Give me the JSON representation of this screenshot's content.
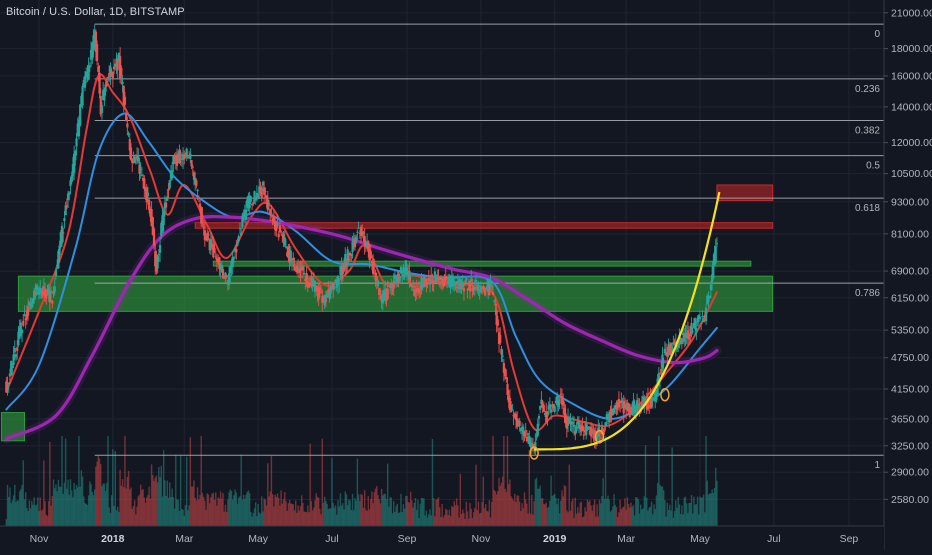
{
  "header": {
    "title": "Bitcoin / U.S. Dollar, 1D, BITSTAMP"
  },
  "colors": {
    "background": "#131722",
    "up_candle": "#26a69a",
    "down_candle": "#ef5350",
    "ema_fast": "#e53935",
    "ema_mid": "#2f8fe0",
    "ma_slow": "#9c27b0",
    "support_zone": "#2e9d3a",
    "resistance_zone": "#c62828",
    "parabola": "#f5e21b",
    "fib_line": "#b2b5be",
    "pivot_marker": "#f5a623"
  },
  "chart_data": {
    "type": "candlestick",
    "title": "Bitcoin / U.S. Dollar, 1D, BITSTAMP",
    "y_scale": "log",
    "ylim": [
      2300,
      22000
    ],
    "xlim": [
      "2017-10-15",
      "2019-09-30"
    ],
    "y_ticks": [
      "21000.00",
      "18000.00",
      "16000.00",
      "14000.00",
      "12000.00",
      "10500.00",
      "9300.00",
      "8100.00",
      "6900.00",
      "6150.00",
      "5350.00",
      "4750.00",
      "4150.00",
      "3650.00",
      "3250.00",
      "2900.00",
      "2580.00"
    ],
    "x_ticks": [
      {
        "label": "Nov",
        "date": "2017-11-01",
        "bold": false
      },
      {
        "label": "2018",
        "date": "2018-01-01",
        "bold": true
      },
      {
        "label": "Mar",
        "date": "2018-03-01",
        "bold": false
      },
      {
        "label": "May",
        "date": "2018-05-01",
        "bold": false
      },
      {
        "label": "Jul",
        "date": "2018-07-01",
        "bold": false
      },
      {
        "label": "Sep",
        "date": "2018-09-01",
        "bold": false
      },
      {
        "label": "Nov",
        "date": "2018-11-01",
        "bold": false
      },
      {
        "label": "2019",
        "date": "2019-01-01",
        "bold": true
      },
      {
        "label": "Mar",
        "date": "2019-03-01",
        "bold": false
      },
      {
        "label": "May",
        "date": "2019-05-01",
        "bold": false
      },
      {
        "label": "Jul",
        "date": "2019-07-01",
        "bold": false
      },
      {
        "label": "Sep",
        "date": "2019-09-01",
        "bold": false
      }
    ],
    "fib_levels": [
      {
        "label": "0",
        "price": 20000
      },
      {
        "label": "0.236",
        "price": 15800
      },
      {
        "label": "0.382",
        "price": 13200
      },
      {
        "label": "0.5",
        "price": 11350
      },
      {
        "label": "0.618",
        "price": 9450
      },
      {
        "label": "0.786",
        "price": 6550
      },
      {
        "label": "1",
        "price": 3120
      }
    ],
    "fib_start_date": "2017-12-17",
    "fib_end_date": "2019-05-15",
    "zones": [
      {
        "type": "support",
        "from_date": "2017-10-15",
        "to_date": "2019-06-30",
        "low": 5800,
        "high": 6750
      },
      {
        "type": "support",
        "from_date": "2018-03-25",
        "to_date": "2019-06-12",
        "low": 7050,
        "high": 7200
      },
      {
        "type": "support",
        "from_date": "2017-10-01",
        "to_date": "2017-10-20",
        "low": 3320,
        "high": 3750
      },
      {
        "type": "resistance",
        "from_date": "2018-03-10",
        "to_date": "2019-06-30",
        "low": 8300,
        "high": 8500
      },
      {
        "type": "resistance",
        "from_date": "2019-05-15",
        "to_date": "2019-06-30",
        "low": 9350,
        "high": 10000
      }
    ],
    "pivots": [
      {
        "date": "2018-12-15",
        "price": 3150
      },
      {
        "date": "2019-02-07",
        "price": 3380
      },
      {
        "date": "2019-04-02",
        "price": 4050
      }
    ],
    "parabola": {
      "start_date": "2018-12-15",
      "start_price": 3200,
      "end_date": "2019-05-17",
      "end_price": 9700
    },
    "close_path": [
      [
        "2017-10-05",
        4200
      ],
      [
        "2017-10-20",
        5700
      ],
      [
        "2017-11-01",
        6400
      ],
      [
        "2017-11-12",
        6200
      ],
      [
        "2017-11-20",
        8200
      ],
      [
        "2017-11-29",
        10600
      ],
      [
        "2017-12-07",
        15000
      ],
      [
        "2017-12-12",
        16400
      ],
      [
        "2017-12-17",
        19300
      ],
      [
        "2017-12-22",
        13900
      ],
      [
        "2017-12-27",
        15700
      ],
      [
        "2018-01-06",
        17100
      ],
      [
        "2018-01-16",
        11200
      ],
      [
        "2018-01-22",
        11000
      ],
      [
        "2018-02-01",
        9000
      ],
      [
        "2018-02-06",
        6900
      ],
      [
        "2018-02-10",
        8300
      ],
      [
        "2018-02-20",
        11200
      ],
      [
        "2018-03-05",
        11400
      ],
      [
        "2018-03-18",
        8100
      ],
      [
        "2018-04-01",
        6900
      ],
      [
        "2018-04-06",
        6600
      ],
      [
        "2018-04-15",
        8100
      ],
      [
        "2018-04-24",
        9400
      ],
      [
        "2018-05-05",
        9800
      ],
      [
        "2018-05-15",
        8500
      ],
      [
        "2018-05-28",
        7300
      ],
      [
        "2018-06-10",
        6700
      ],
      [
        "2018-06-24",
        6100
      ],
      [
        "2018-07-05",
        6600
      ],
      [
        "2018-07-24",
        8300
      ],
      [
        "2018-08-01",
        7500
      ],
      [
        "2018-08-11",
        6100
      ],
      [
        "2018-08-20",
        6500
      ],
      [
        "2018-08-31",
        7000
      ],
      [
        "2018-09-06",
        6400
      ],
      [
        "2018-09-22",
        6700
      ],
      [
        "2018-10-15",
        6500
      ],
      [
        "2018-11-10",
        6400
      ],
      [
        "2018-11-14",
        5600
      ],
      [
        "2018-11-20",
        4500
      ],
      [
        "2018-11-25",
        3800
      ],
      [
        "2018-12-07",
        3400
      ],
      [
        "2018-12-15",
        3200
      ],
      [
        "2018-12-20",
        3900
      ],
      [
        "2018-12-25",
        3700
      ],
      [
        "2019-01-06",
        4000
      ],
      [
        "2019-01-10",
        3600
      ],
      [
        "2019-01-28",
        3450
      ],
      [
        "2019-02-07",
        3400
      ],
      [
        "2019-02-20",
        3900
      ],
      [
        "2019-03-05",
        3800
      ],
      [
        "2019-03-25",
        4000
      ],
      [
        "2019-04-02",
        4900
      ],
      [
        "2019-04-15",
        5100
      ],
      [
        "2019-04-25",
        5400
      ],
      [
        "2019-05-05",
        5700
      ],
      [
        "2019-05-12",
        7000
      ],
      [
        "2019-05-15",
        8000
      ]
    ],
    "moving_averages": [
      {
        "id": "ema-fast",
        "points": [
          [
            "2017-10-05",
            4100
          ],
          [
            "2017-11-01",
            5800
          ],
          [
            "2017-11-25",
            8100
          ],
          [
            "2017-12-10",
            12600
          ],
          [
            "2017-12-20",
            16000
          ],
          [
            "2018-01-01",
            14900
          ],
          [
            "2018-01-15",
            13400
          ],
          [
            "2018-02-01",
            10600
          ],
          [
            "2018-02-15",
            8800
          ],
          [
            "2018-03-01",
            10000
          ],
          [
            "2018-03-20",
            8400
          ],
          [
            "2018-04-05",
            7300
          ],
          [
            "2018-04-25",
            8700
          ],
          [
            "2018-05-10",
            9200
          ],
          [
            "2018-06-01",
            7600
          ],
          [
            "2018-06-25",
            6500
          ],
          [
            "2018-07-15",
            6900
          ],
          [
            "2018-07-28",
            7700
          ],
          [
            "2018-08-15",
            6500
          ],
          [
            "2018-09-01",
            6800
          ],
          [
            "2018-10-01",
            6550
          ],
          [
            "2018-11-01",
            6450
          ],
          [
            "2018-11-15",
            6000
          ],
          [
            "2018-11-28",
            4500
          ],
          [
            "2018-12-15",
            3500
          ],
          [
            "2019-01-01",
            3700
          ],
          [
            "2019-01-25",
            3600
          ],
          [
            "2019-02-15",
            3550
          ],
          [
            "2019-03-10",
            3850
          ],
          [
            "2019-04-05",
            4500
          ],
          [
            "2019-04-25",
            5150
          ],
          [
            "2019-05-15",
            6300
          ]
        ]
      },
      {
        "id": "ema-mid",
        "points": [
          [
            "2017-10-05",
            3800
          ],
          [
            "2017-11-01",
            4600
          ],
          [
            "2017-12-01",
            7600
          ],
          [
            "2017-12-20",
            11500
          ],
          [
            "2018-01-10",
            13600
          ],
          [
            "2018-01-30",
            12100
          ],
          [
            "2018-02-20",
            10400
          ],
          [
            "2018-03-15",
            9400
          ],
          [
            "2018-04-10",
            8700
          ],
          [
            "2018-05-05",
            8900
          ],
          [
            "2018-06-01",
            8200
          ],
          [
            "2018-07-01",
            7200
          ],
          [
            "2018-08-01",
            7100
          ],
          [
            "2018-09-01",
            6850
          ],
          [
            "2018-10-01",
            6700
          ],
          [
            "2018-11-10",
            6600
          ],
          [
            "2018-11-30",
            5200
          ],
          [
            "2018-12-20",
            4300
          ],
          [
            "2019-01-20",
            3850
          ],
          [
            "2019-02-15",
            3650
          ],
          [
            "2019-03-10",
            3800
          ],
          [
            "2019-04-05",
            4200
          ],
          [
            "2019-05-01",
            4950
          ],
          [
            "2019-05-15",
            5400
          ]
        ]
      },
      {
        "id": "ma-slow",
        "points": [
          [
            "2017-10-05",
            3350
          ],
          [
            "2017-11-15",
            3700
          ],
          [
            "2017-12-15",
            4800
          ],
          [
            "2018-01-15",
            6600
          ],
          [
            "2018-02-10",
            8000
          ],
          [
            "2018-03-10",
            8650
          ],
          [
            "2018-04-10",
            8700
          ],
          [
            "2018-05-10",
            8550
          ],
          [
            "2018-06-10",
            8300
          ],
          [
            "2018-07-10",
            8000
          ],
          [
            "2018-08-10",
            7600
          ],
          [
            "2018-09-10",
            7250
          ],
          [
            "2018-10-10",
            6950
          ],
          [
            "2018-11-10",
            6700
          ],
          [
            "2018-12-10",
            6100
          ],
          [
            "2019-01-10",
            5500
          ],
          [
            "2019-02-10",
            5100
          ],
          [
            "2019-03-10",
            4800
          ],
          [
            "2019-04-10",
            4650
          ],
          [
            "2019-05-05",
            4750
          ],
          [
            "2019-05-15",
            4900
          ]
        ]
      }
    ]
  }
}
